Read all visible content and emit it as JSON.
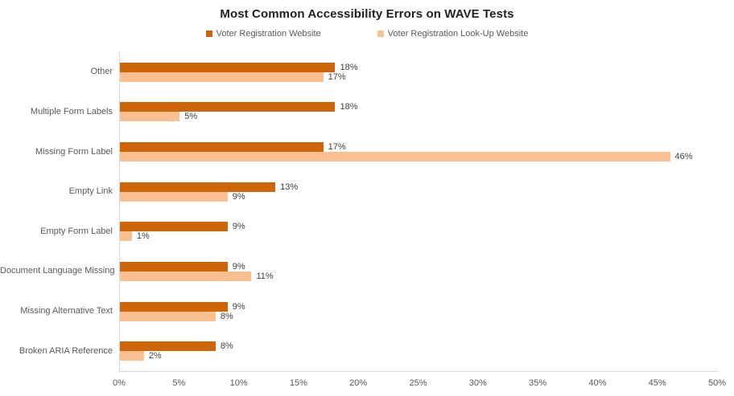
{
  "chart_data": {
    "type": "bar",
    "orientation": "horizontal",
    "title": "Most Common Accessibility Errors on WAVE Tests",
    "categories": [
      "Other",
      "Multiple Form Labels",
      "Missing Form Label",
      "Empty Link",
      "Empty Form Label",
      "Document Language Missing",
      "Missing Alternative Text",
      "Broken ARIA Reference"
    ],
    "series": [
      {
        "name": "Voter Registration Website",
        "color": "#CE6509",
        "values": [
          18,
          18,
          17,
          13,
          9,
          9,
          9,
          8
        ],
        "labels": [
          "18%",
          "18%",
          "17%",
          "13%",
          "9%",
          "9%",
          "9%",
          "8%"
        ]
      },
      {
        "name": "Voter Registration Look-Up Website",
        "color": "#FAC091",
        "values": [
          17,
          5,
          46,
          9,
          1,
          11,
          8,
          2
        ],
        "labels": [
          "17%",
          "5%",
          "46%",
          "9%",
          "1%",
          "11%",
          "8%",
          "2%"
        ]
      }
    ],
    "x_ticks": [
      "0%",
      "5%",
      "10%",
      "15%",
      "20%",
      "25%",
      "30%",
      "35%",
      "40%",
      "45%",
      "50%"
    ],
    "xlim": [
      0,
      50
    ],
    "grid": false,
    "legend_position": "top",
    "axis_line_color": "#d9d9d9",
    "label_color": "#404040",
    "tick_color": "#595959"
  }
}
